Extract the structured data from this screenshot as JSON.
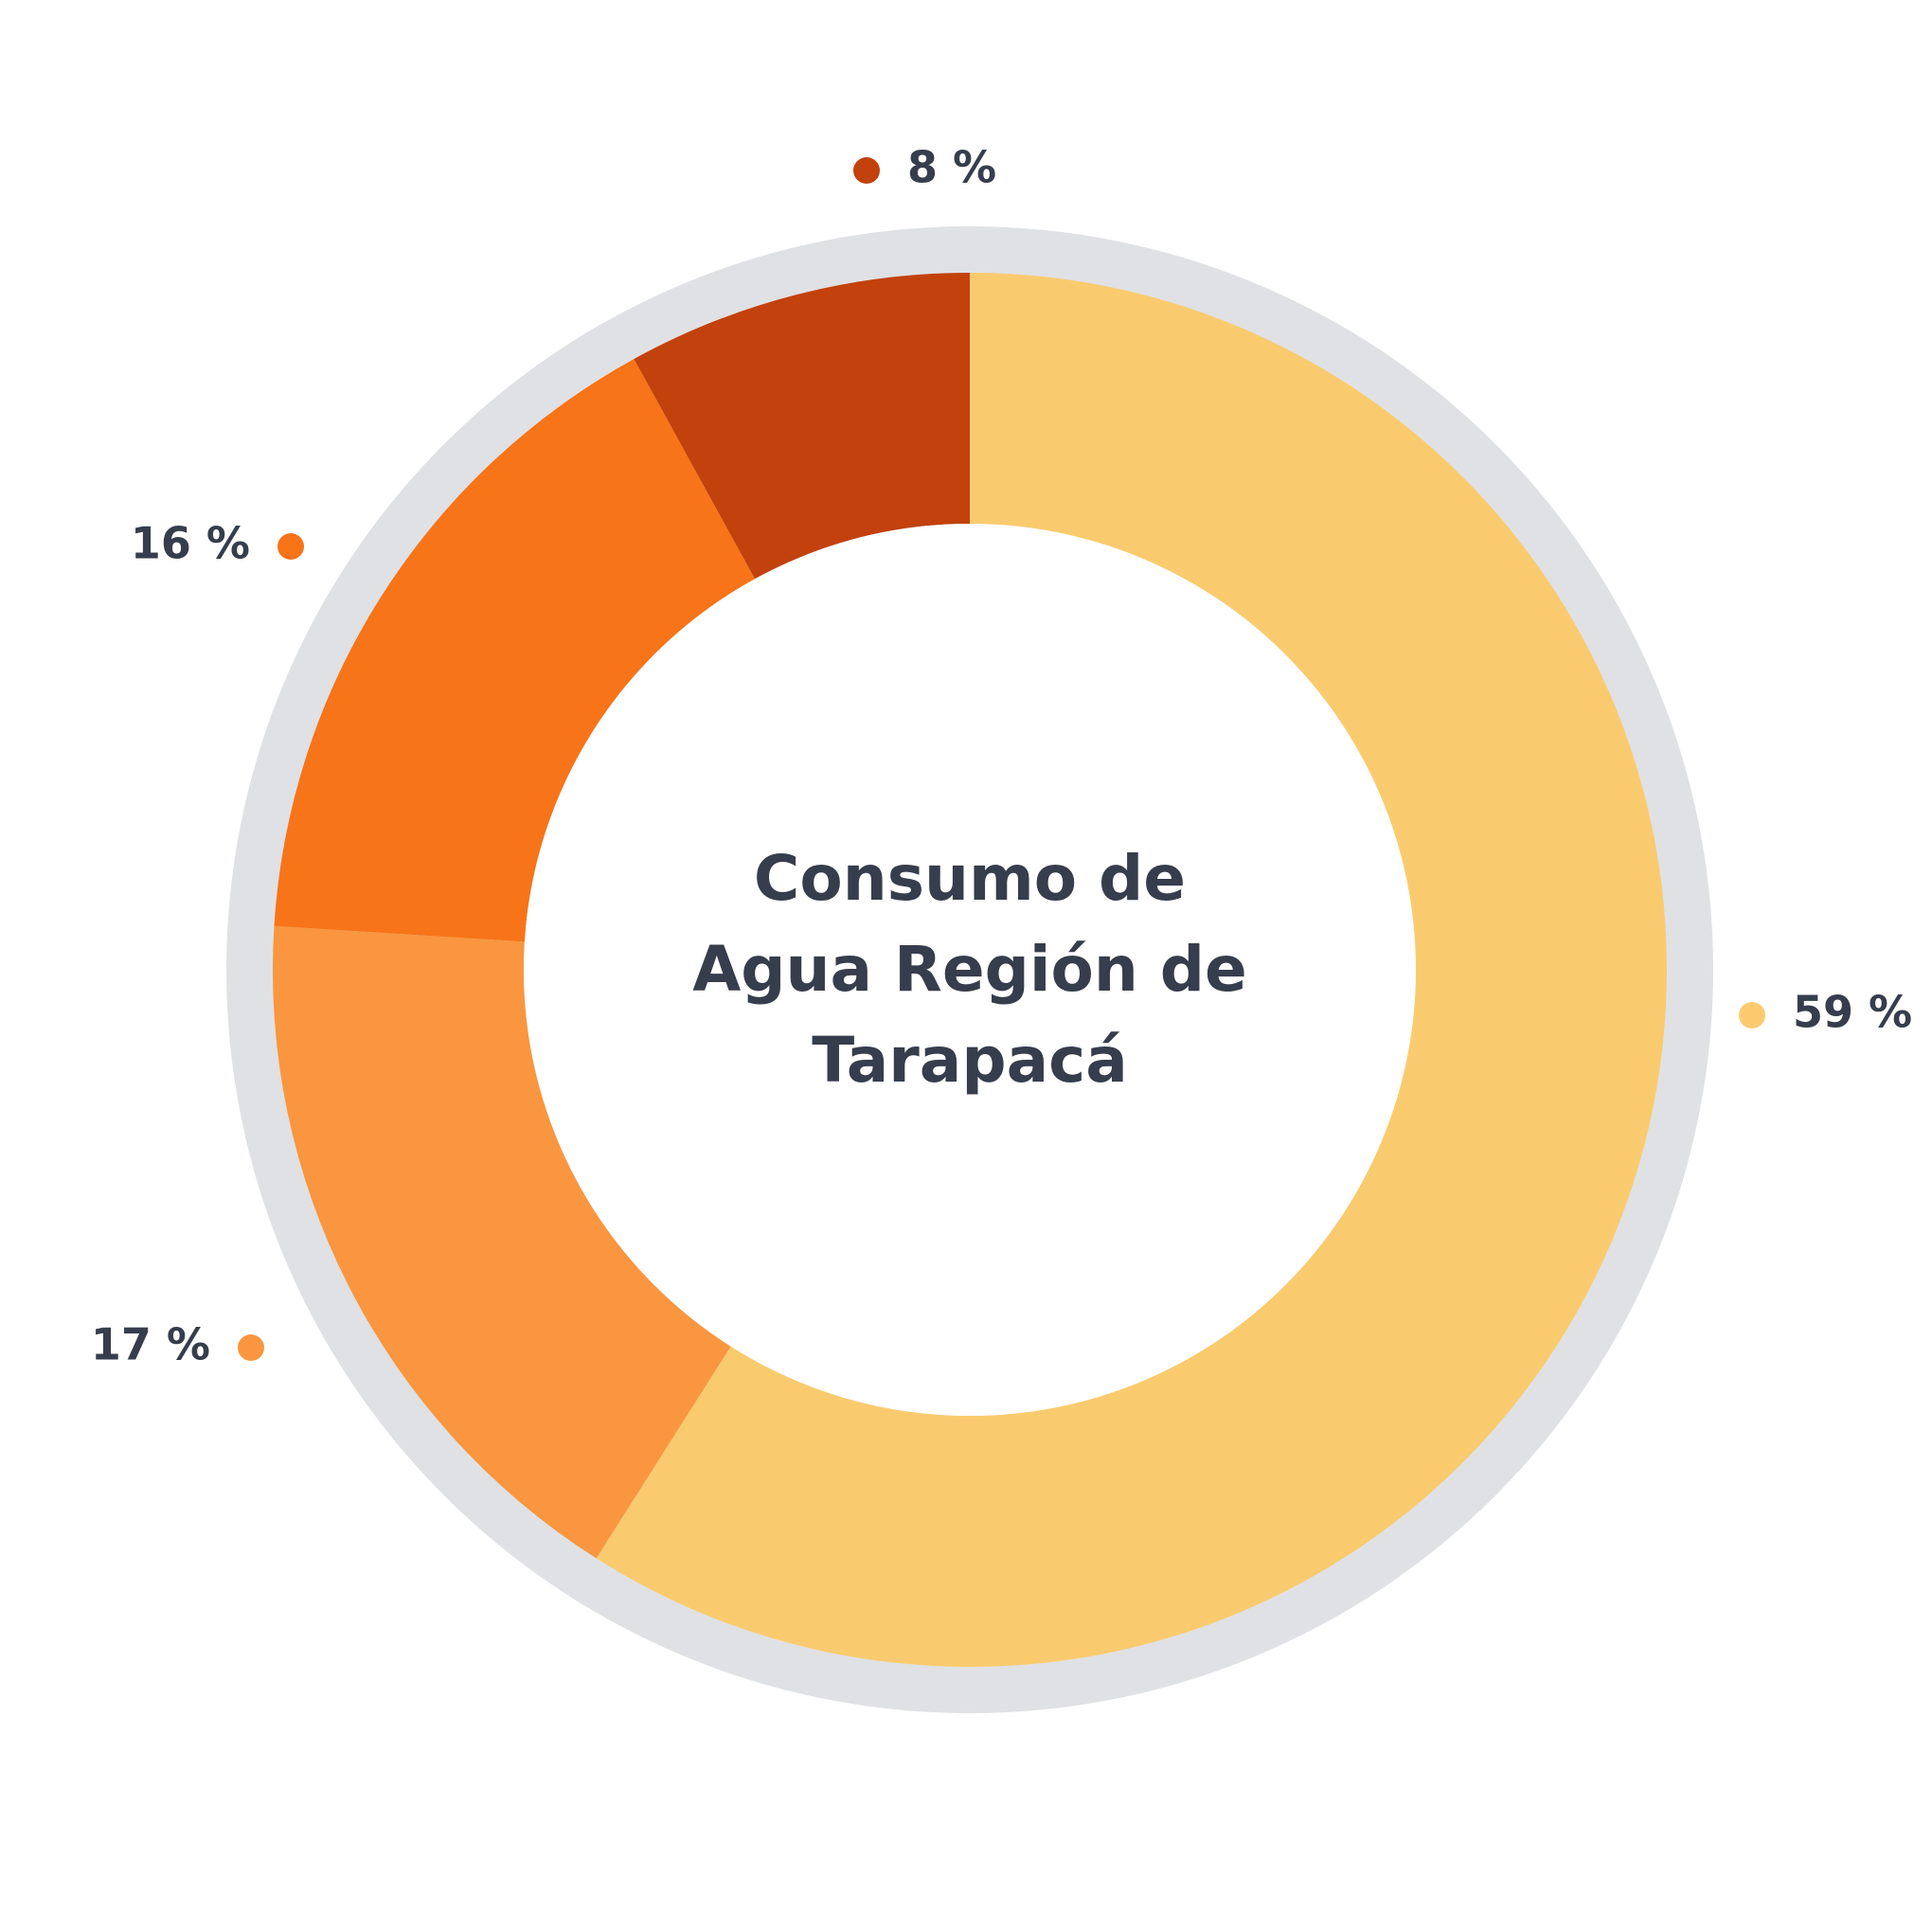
{
  "chart_data": {
    "type": "donut",
    "title": "Consumo de Agua Región de Tarapacá",
    "categories": [
      null,
      null,
      null,
      null
    ],
    "values": [
      59,
      17,
      16,
      8
    ],
    "value_labels": [
      "59 %",
      "17 %",
      "16 %",
      "8 %"
    ],
    "colors": [
      "#facb6e",
      "#f9963f",
      "#f77419",
      "#c2410c"
    ]
  }
}
